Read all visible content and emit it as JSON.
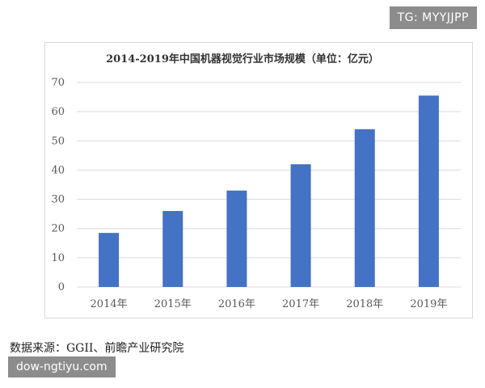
{
  "watermark_tg": "TG: MYYJJPP",
  "source_text": "数据来源：GGII、前瞻产业研究院",
  "watermark_site": "dow-ngtiyu.com",
  "colors": {
    "bar": "#4472C4",
    "grid": "#d9d9d9",
    "axis_text": "#595959"
  },
  "chart_data": {
    "type": "bar",
    "title": "2014-2019年中国机器视觉行业市场规模（单位：亿元）",
    "xlabel": "",
    "ylabel": "",
    "categories": [
      "2014年",
      "2015年",
      "2016年",
      "2017年",
      "2018年",
      "2019年"
    ],
    "values": [
      18.5,
      26,
      33,
      42,
      54,
      65.5
    ],
    "ylim": [
      0,
      70
    ],
    "yticks": [
      0,
      10,
      20,
      30,
      40,
      50,
      60,
      70
    ],
    "grid": true
  }
}
